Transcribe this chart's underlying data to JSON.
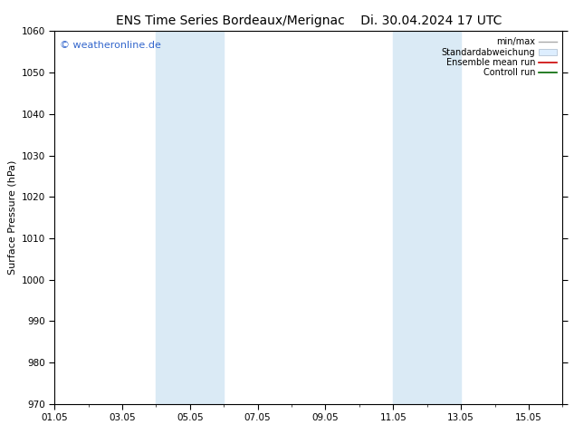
{
  "title_left": "ENS Time Series Bordeaux/Merignac",
  "title_right": "Di. 30.04.2024 17 UTC",
  "ylabel": "Surface Pressure (hPa)",
  "ylim": [
    970,
    1060
  ],
  "yticks": [
    970,
    980,
    990,
    1000,
    1010,
    1020,
    1030,
    1040,
    1050,
    1060
  ],
  "xticklabels": [
    "01.05",
    "03.05",
    "05.05",
    "07.05",
    "09.05",
    "11.05",
    "13.05",
    "15.05"
  ],
  "xtick_days": [
    1,
    3,
    5,
    7,
    9,
    11,
    13,
    15
  ],
  "xstart_day": 1,
  "xend_day": 16,
  "shade_bands": [
    {
      "xstart_day": 4,
      "xend_day": 6
    },
    {
      "xstart_day": 11,
      "xend_day": 13
    }
  ],
  "shade_color": "#daeaf5",
  "background_color": "#ffffff",
  "watermark": "© weatheronline.de",
  "legend_labels": [
    "min/max",
    "Standardabweichung",
    "Ensemble mean run",
    "Controll run"
  ],
  "legend_colors": [
    "#aaaaaa",
    "#cccccc",
    "#cc0000",
    "#006600"
  ],
  "title_fontsize": 10,
  "axis_fontsize": 8,
  "tick_fontsize": 7.5,
  "watermark_fontsize": 8,
  "watermark_color": "#3366cc"
}
